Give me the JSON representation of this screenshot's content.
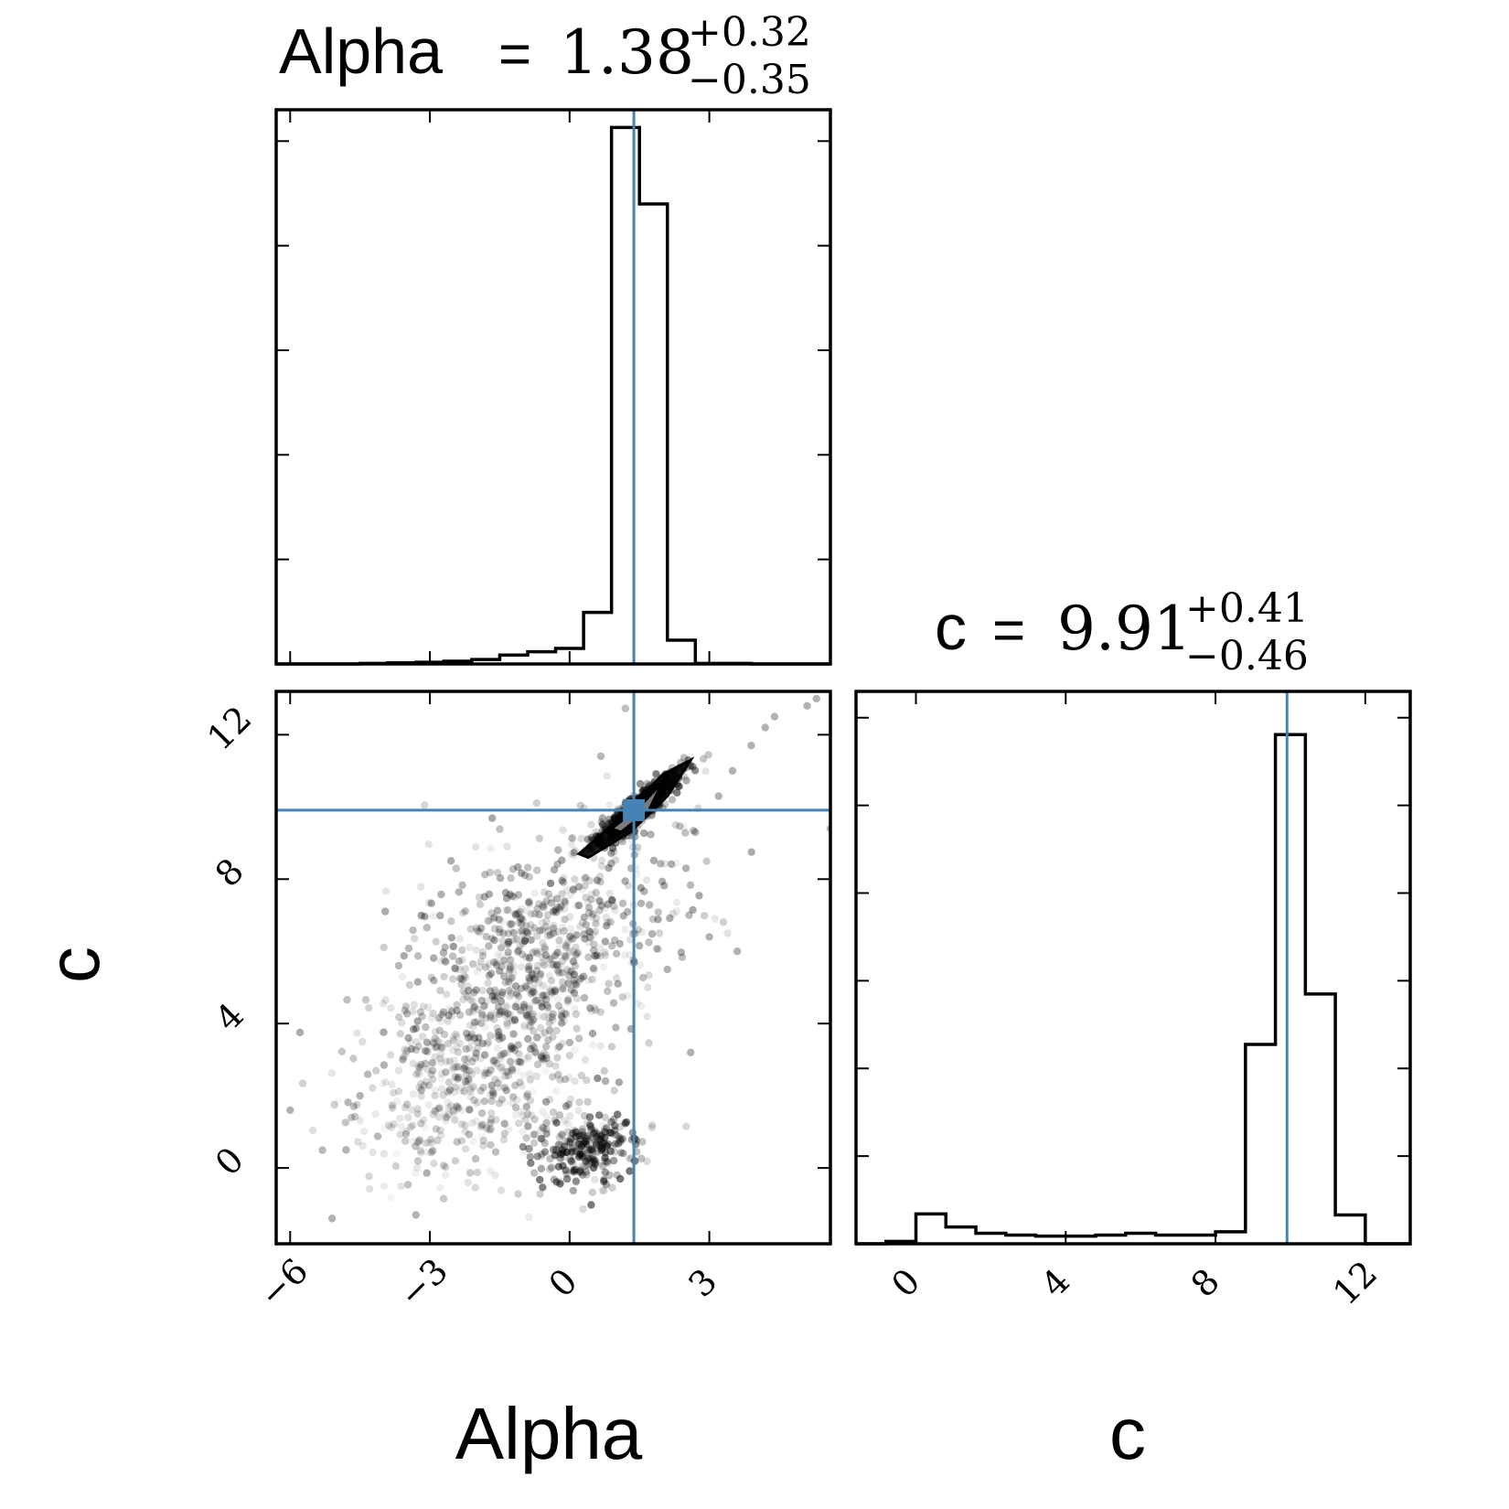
{
  "chart_data": {
    "type": "corner",
    "colors": {
      "truth": "#4682b4",
      "hist": "#000000",
      "axes": "#000000"
    },
    "parameters": [
      {
        "name": "Alpha",
        "median": 1.38,
        "plus": "0.32",
        "minus": "0.35",
        "median_text": "1.38"
      },
      {
        "name": "c",
        "median": 9.91,
        "plus": "0.41",
        "minus": "0.46",
        "median_text": "9.91"
      }
    ],
    "panels": [
      {
        "kind": "histogram",
        "param": "Alpha",
        "title": {
          "name": "Alpha",
          "eq": "=",
          "median": "1.38",
          "plus": "+0.32",
          "minus": "−0.35"
        },
        "xlim": [
          -6.3,
          5.6
        ],
        "ylim": [
          0,
          1.0
        ],
        "truth": 1.38,
        "bin_edges": [
          -6.3,
          -5.7,
          -5.1,
          -4.5,
          -3.9,
          -3.3,
          -2.7,
          -2.1,
          -1.5,
          -0.9,
          -0.3,
          0.3,
          0.9,
          1.5,
          2.1,
          2.7,
          3.3,
          3.9,
          4.5,
          5.1,
          5.6
        ],
        "counts": [
          0.0,
          0.0,
          0.0,
          0.001,
          0.002,
          0.003,
          0.005,
          0.008,
          0.016,
          0.022,
          0.028,
          0.093,
          0.968,
          0.83,
          0.043,
          0.001,
          0.001,
          0.0,
          0.0,
          0.0
        ],
        "y_ticks_count": 5,
        "x_tick_values": [
          -6,
          -3,
          0,
          3
        ]
      },
      {
        "kind": "scatter",
        "x_param": "Alpha",
        "y_param": "c",
        "xlim": [
          -6.3,
          5.6
        ],
        "ylim": [
          -2.1,
          13.2
        ],
        "truth": [
          1.38,
          9.91
        ],
        "x_tick_labels": [
          "−6",
          "−3",
          "0",
          "3"
        ],
        "x_tick_values": [
          -6,
          -3,
          0,
          3
        ],
        "y_tick_labels": [
          "0",
          "4",
          "8",
          "12"
        ],
        "y_tick_values": [
          0,
          4,
          8,
          12
        ],
        "clusters": [
          {
            "cx": 1.4,
            "cy": 9.9,
            "sx": 0.45,
            "sy": 0.5,
            "rho": 0.92,
            "n": 700,
            "alpha": 0.55
          },
          {
            "cx": -0.8,
            "cy": 5.5,
            "sx": 1.5,
            "sy": 2.0,
            "rho": 0.5,
            "n": 900,
            "alpha": 0.35
          },
          {
            "cx": 0.4,
            "cy": 0.5,
            "sx": 0.55,
            "sy": 0.55,
            "rho": 0.1,
            "n": 260,
            "alpha": 0.55
          },
          {
            "cx": -2.2,
            "cy": 2.0,
            "sx": 1.2,
            "sy": 1.2,
            "rho": 0.2,
            "n": 300,
            "alpha": 0.25
          }
        ],
        "contours": [
          {
            "level": "outer",
            "points": [
              [
                0.2,
                8.7
              ],
              [
                1.1,
                9.7
              ],
              [
                2.0,
                10.9
              ],
              [
                2.6,
                11.3
              ],
              [
                2.1,
                10.3
              ],
              [
                1.3,
                9.3
              ],
              [
                0.4,
                8.6
              ]
            ]
          },
          {
            "level": "inner",
            "points": [
              [
                0.9,
                9.4
              ],
              [
                1.5,
                10.0
              ],
              [
                2.0,
                10.7
              ],
              [
                1.7,
                9.9
              ],
              [
                1.1,
                9.3
              ]
            ]
          }
        ],
        "outliers": [
          [
            5.3,
            13.0
          ],
          [
            5.1,
            12.8
          ],
          [
            4.4,
            12.5
          ],
          [
            4.2,
            12.2
          ],
          [
            3.9,
            11.7
          ],
          [
            3.5,
            11.0
          ],
          [
            3.2,
            10.3
          ],
          [
            2.7,
            9.3
          ],
          [
            2.5,
            8.3
          ],
          [
            3.0,
            6.4
          ],
          [
            3.6,
            6.0
          ],
          [
            2.1,
            5.5
          ],
          [
            2.6,
            3.2
          ],
          [
            -4.8,
            0.5
          ],
          [
            -5.1,
            -1.4
          ],
          [
            -6.0,
            1.6
          ],
          [
            -3.3,
            -1.3
          ],
          [
            -4.5,
            2.0
          ],
          [
            5.6,
            9.4
          ]
        ]
      },
      {
        "kind": "histogram",
        "param": "c",
        "title": {
          "name": "c",
          "eq": "=",
          "median": "9.91",
          "plus": "+0.41",
          "minus": "−0.46"
        },
        "xlim": [
          -1.6,
          13.2
        ],
        "ylim": [
          0,
          1.15
        ],
        "truth": 9.91,
        "bin_edges": [
          -1.6,
          -0.8,
          0.0,
          0.8,
          1.6,
          2.4,
          3.2,
          4.0,
          4.8,
          5.6,
          6.4,
          7.2,
          8.0,
          8.8,
          9.6,
          10.4,
          11.2,
          12.0,
          12.8,
          13.2
        ],
        "counts": [
          0.0,
          0.005,
          0.062,
          0.035,
          0.022,
          0.018,
          0.016,
          0.016,
          0.018,
          0.022,
          0.018,
          0.018,
          0.025,
          0.415,
          1.06,
          0.52,
          0.06,
          0.0,
          0.0
        ],
        "y_ticks_count": 6,
        "x_tick_values": [
          0,
          4,
          8,
          12
        ],
        "x_tick_labels": [
          "0",
          "4",
          "8",
          "12"
        ]
      }
    ],
    "axis_labels": {
      "x_left": "Alpha",
      "x_right": "c",
      "y_left": "c"
    }
  }
}
